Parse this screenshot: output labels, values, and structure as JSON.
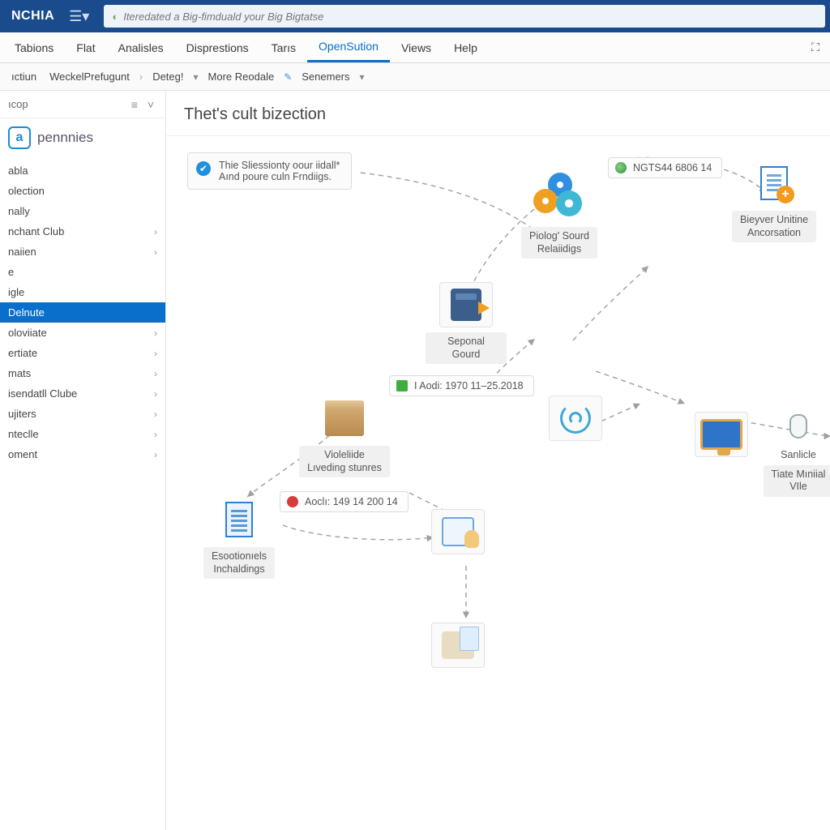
{
  "topbar": {
    "brand": "NCHIA",
    "search_placeholder": "Iteredated a Big-fimduald your Big Bigtatse"
  },
  "menubar": {
    "items": [
      "Tabions",
      "Flat",
      "Analisles",
      "Disprestions",
      "Tarıs",
      "OpenSution",
      "Views",
      "Help"
    ],
    "active_index": 5
  },
  "toolbar": {
    "c0": "ıctiun",
    "c1": "WeckelPrefugunt",
    "c2": "Deteg!",
    "c3": "More Reodale",
    "c4": "Senemers"
  },
  "sidebar": {
    "head": "ıcop",
    "brand_letter": "a",
    "brand_name": "pennnies",
    "items": [
      {
        "label": "abla",
        "chev": false
      },
      {
        "label": "olection",
        "chev": false
      },
      {
        "label": "nally",
        "chev": false
      },
      {
        "label": "nchant Club",
        "chev": true
      },
      {
        "label": "naiien",
        "chev": true
      },
      {
        "label": "e",
        "chev": false
      },
      {
        "label": "igle",
        "chev": false
      },
      {
        "label": "Delnute",
        "chev": false,
        "selected": true
      },
      {
        "label": "oloviiate",
        "chev": true
      },
      {
        "label": "ertiate",
        "chev": true
      },
      {
        "label": "mats",
        "chev": true
      },
      {
        "label": "isendatll Clube",
        "chev": true
      },
      {
        "label": "ujiters",
        "chev": true
      },
      {
        "label": "nteclle",
        "chev": true
      },
      {
        "label": "oment",
        "chev": true
      }
    ]
  },
  "canvas": {
    "title": "Thet's cult bizection",
    "callout_line1": "Thie Sliessionty oour iidall*",
    "callout_line2": "Aınd poure culn Frndiigs.",
    "badges": {
      "b1": "NGTS44 6806 14",
      "b2": "I Aodi:  1970 11–25.2018",
      "b3": "Aoclı:  149 14 200 14"
    },
    "nodes": {
      "gears": "Piolog' Sourd\nRelaiidigs",
      "server": "Seponal Gourd",
      "box": "Violeliide\nLıveding stunres",
      "docblue": "Esootionıels\nInchaldings",
      "docplus": "Bieyver Unitine\nAncorsation",
      "monitor_side": "Sanlicle",
      "monitor": "Tiate Mıniial\nVIle"
    }
  },
  "colors": {
    "topbar": "#1a4b8c",
    "accent": "#0a6ecb",
    "border": "#e3e3e3"
  },
  "diagram_arrows": {
    "stroke": "#9aa0a6",
    "dash": "6 5",
    "paths": [
      "M 240 45 C 360 60, 420 90, 460 120",
      "M 500 60 C 440 90, 390 150, 370 200",
      "M 547 30 C 600 20, 700 30, 740 70",
      "M 502 252 C 540 210, 575 180, 595 160",
      "M 400 300 C 430 270, 455 250, 455 250",
      "M 240 330 C 200 380, 130 420, 100 445",
      "M 300 440 C 340 460, 360 470, 360 470",
      "M 530 290 C 590 310, 640 330, 640 330",
      "M 700 350 C 760 360, 810 370, 820 370",
      "M 497 370 C 540 350, 585 330, 585 330",
      "M 370 530 L 370 595",
      "M 144 480 C 200 500, 290 500, 330 495"
    ]
  }
}
